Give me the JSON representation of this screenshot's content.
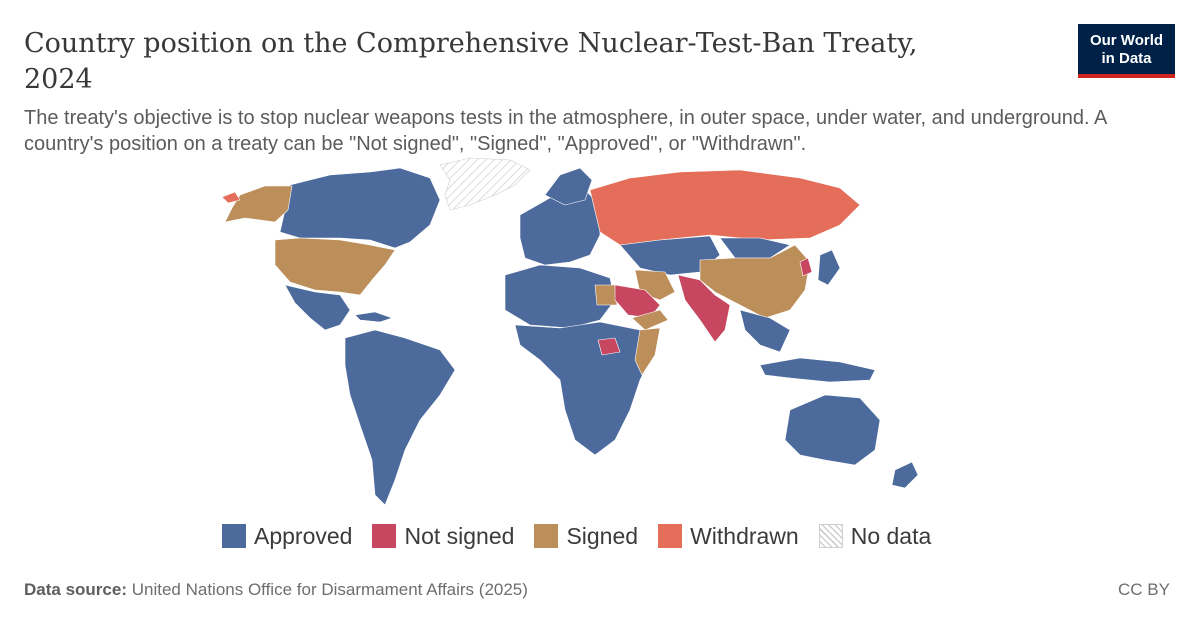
{
  "title": "Country position on the Comprehensive Nuclear-Test-Ban Treaty, 2024",
  "subtitle": "The treaty's objective is to stop nuclear weapons tests in the atmosphere, in outer space, under water, and underground. A country's position on a treaty can be \"Not signed\", \"Signed\", \"Approved\", or \"Withdrawn\".",
  "logo": {
    "line1": "Our World",
    "line2": "in Data"
  },
  "colors": {
    "approved": "#4c6a9c",
    "not_signed": "#c74760",
    "signed": "#bc8e5a",
    "withdrawn": "#e56e5a",
    "no_data": "#ffffff"
  },
  "legend": [
    {
      "key": "approved",
      "label": "Approved"
    },
    {
      "key": "not_signed",
      "label": "Not signed"
    },
    {
      "key": "signed",
      "label": "Signed"
    },
    {
      "key": "withdrawn",
      "label": "Withdrawn"
    },
    {
      "key": "no_data",
      "label": "No data"
    }
  ],
  "footer": {
    "source_label": "Data source:",
    "source_text": "United Nations Office for Disarmament Affairs (2025)",
    "license": "CC BY"
  }
}
